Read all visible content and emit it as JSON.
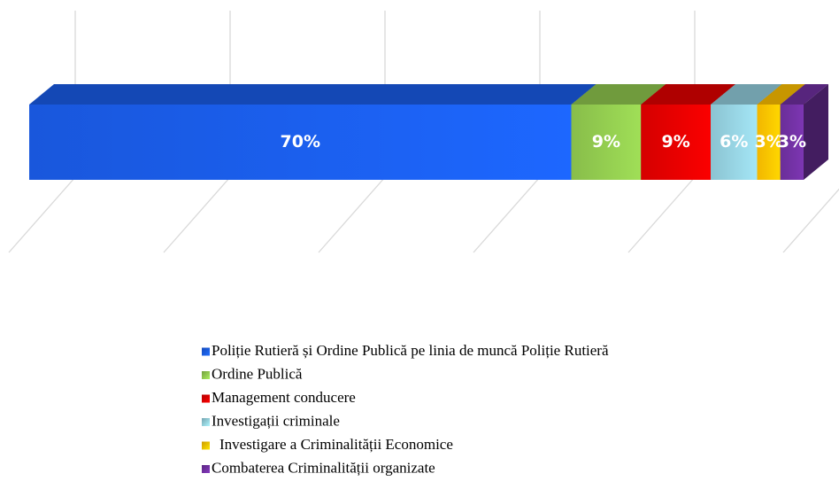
{
  "chart_data": {
    "type": "bar3d_stacked",
    "categories": [
      ""
    ],
    "series": [
      {
        "name": "Poliție Rutieră și Ordine Publică pe linia de muncă Poliție Rutieră",
        "color": "#1a5ce8",
        "values": [
          70
        ],
        "value_labels": [
          "70%"
        ]
      },
      {
        "name": "Ordine Publică",
        "color": "#8fc74e",
        "values": [
          9
        ],
        "value_labels": [
          "9%"
        ]
      },
      {
        "name": "Management conducere",
        "color": "#e00000",
        "values": [
          9
        ],
        "value_labels": [
          "9%"
        ]
      },
      {
        "name": "Investigații criminale",
        "color": "#92cddc",
        "values": [
          6
        ],
        "value_labels": [
          "6%"
        ]
      },
      {
        "name": "Investigare a Criminalității Economice",
        "color": "#ffc000",
        "values": [
          3
        ],
        "value_labels": [
          "3%"
        ]
      },
      {
        "name": "Combaterea Criminalității organizate",
        "color": "#7030a0",
        "values": [
          3
        ],
        "value_labels": [
          "3%"
        ]
      }
    ],
    "xlim": [
      0,
      100
    ],
    "xticks": [
      0,
      20,
      40,
      60,
      80,
      100
    ],
    "grid": true
  }
}
